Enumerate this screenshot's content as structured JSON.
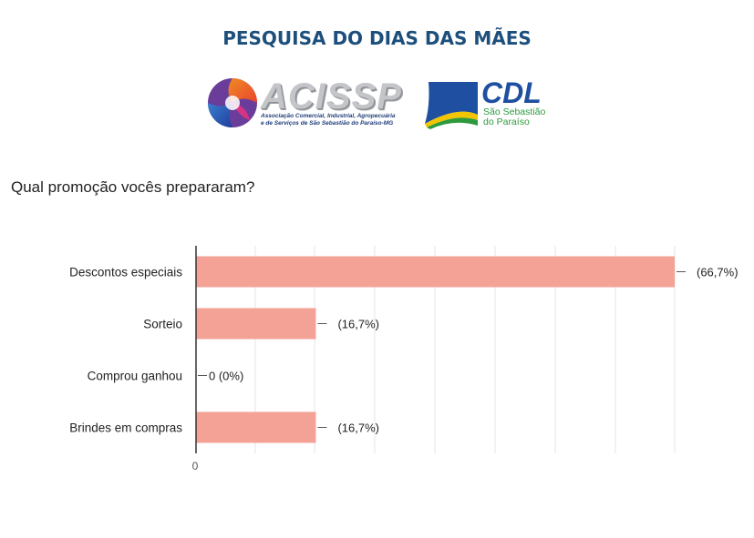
{
  "header": {
    "title": "PESQUISA DO DIAS DAS MÃES"
  },
  "logos": {
    "acissp_name": "ACISSP",
    "acissp_tagline_1": "Associação Comercial, Industrial, Agropecuária",
    "acissp_tagline_2": "e de Serviços de São Sebastião do Paraíso-MG",
    "cdl_name": "CDL",
    "cdl_sub_1": "São Sebastião",
    "cdl_sub_2": "do Paraíso",
    "colors": {
      "acissp_blue": "#1f3d7a",
      "cdl_blue": "#1f4fa0",
      "cdl_green": "#2e9a3e",
      "cdl_yellow": "#f2c500"
    }
  },
  "question": "Qual promoção vocês prepararam?",
  "chart_data": {
    "type": "bar",
    "orientation": "horizontal",
    "categories": [
      "Descontos especiais",
      "Sorteio",
      "Comprou ganhou",
      "Brindes em compras"
    ],
    "values": [
      66.7,
      16.7,
      0,
      16.7
    ],
    "data_labels": [
      "(66,7%)",
      "(16,7%)",
      "0 (0%)",
      "(16,7%)"
    ],
    "x_tick_labels": [
      "0"
    ],
    "xlim": [
      0,
      66.7
    ],
    "grid": true,
    "bar_color": "#f4a196"
  }
}
